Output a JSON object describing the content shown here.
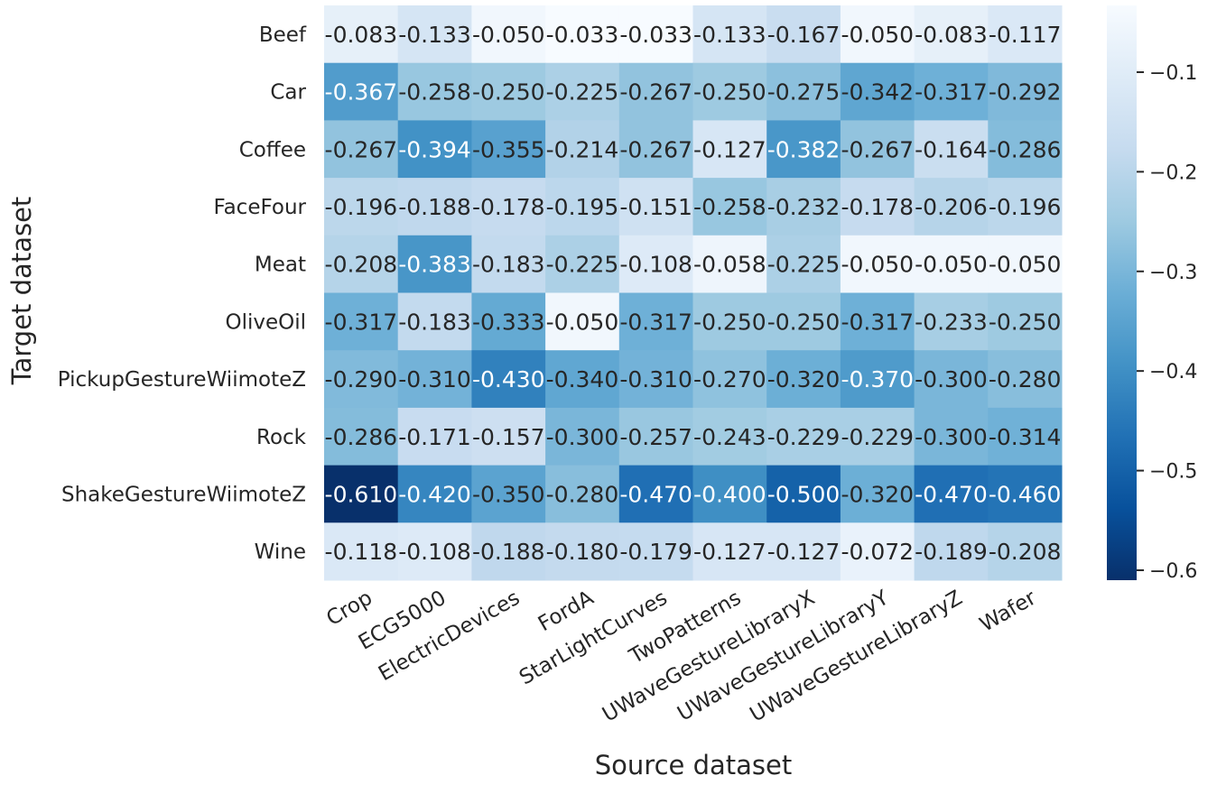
{
  "chart_data": {
    "type": "heatmap",
    "xlabel": "Source dataset",
    "ylabel": "Target dataset",
    "x_categories": [
      "Crop",
      "ECG5000",
      "ElectricDevices",
      "FordA",
      "StarLightCurves",
      "TwoPatterns",
      "UWaveGestureLibraryX",
      "UWaveGestureLibraryY",
      "UWaveGestureLibraryZ",
      "Wafer"
    ],
    "y_categories": [
      "Beef",
      "Car",
      "Coffee",
      "FaceFour",
      "Meat",
      "OliveOil",
      "PickupGestureWiimoteZ",
      "Rock",
      "ShakeGestureWiimoteZ",
      "Wine"
    ],
    "values": [
      [
        -0.083,
        -0.133,
        -0.05,
        -0.033,
        -0.033,
        -0.133,
        -0.167,
        -0.05,
        -0.083,
        -0.117
      ],
      [
        -0.367,
        -0.258,
        -0.25,
        -0.225,
        -0.267,
        -0.25,
        -0.275,
        -0.342,
        -0.317,
        -0.292
      ],
      [
        -0.267,
        -0.394,
        -0.355,
        -0.214,
        -0.267,
        -0.127,
        -0.382,
        -0.267,
        -0.164,
        -0.286
      ],
      [
        -0.196,
        -0.188,
        -0.178,
        -0.195,
        -0.151,
        -0.258,
        -0.232,
        -0.178,
        -0.206,
        -0.196
      ],
      [
        -0.208,
        -0.383,
        -0.183,
        -0.225,
        -0.108,
        -0.058,
        -0.225,
        -0.05,
        -0.05,
        -0.05
      ],
      [
        -0.317,
        -0.183,
        -0.333,
        -0.05,
        -0.317,
        -0.25,
        -0.25,
        -0.317,
        -0.233,
        -0.25
      ],
      [
        -0.29,
        -0.31,
        -0.43,
        -0.34,
        -0.31,
        -0.27,
        -0.32,
        -0.37,
        -0.3,
        -0.28
      ],
      [
        -0.286,
        -0.171,
        -0.157,
        -0.3,
        -0.257,
        -0.243,
        -0.229,
        -0.229,
        -0.3,
        -0.314
      ],
      [
        -0.61,
        -0.42,
        -0.35,
        -0.28,
        -0.47,
        -0.4,
        -0.5,
        -0.32,
        -0.47,
        -0.46
      ],
      [
        -0.118,
        -0.108,
        -0.188,
        -0.18,
        -0.179,
        -0.127,
        -0.127,
        -0.072,
        -0.189,
        -0.208
      ]
    ],
    "value_format": "3 decimals",
    "colormap": "Blues (reversed: darker = more negative)",
    "colorbar": {
      "range": [
        -0.61,
        -0.033
      ],
      "ticks": [
        -0.1,
        -0.2,
        -0.3,
        -0.4,
        -0.5,
        -0.6
      ],
      "tick_labels": [
        "−0.1",
        "−0.2",
        "−0.3",
        "−0.4",
        "−0.5",
        "−0.6"
      ],
      "position": "right"
    },
    "colors": {
      "light": "#f7fbff",
      "dark": "#08306b",
      "text_dark": "#262626",
      "text_light": "#ffffff"
    }
  }
}
